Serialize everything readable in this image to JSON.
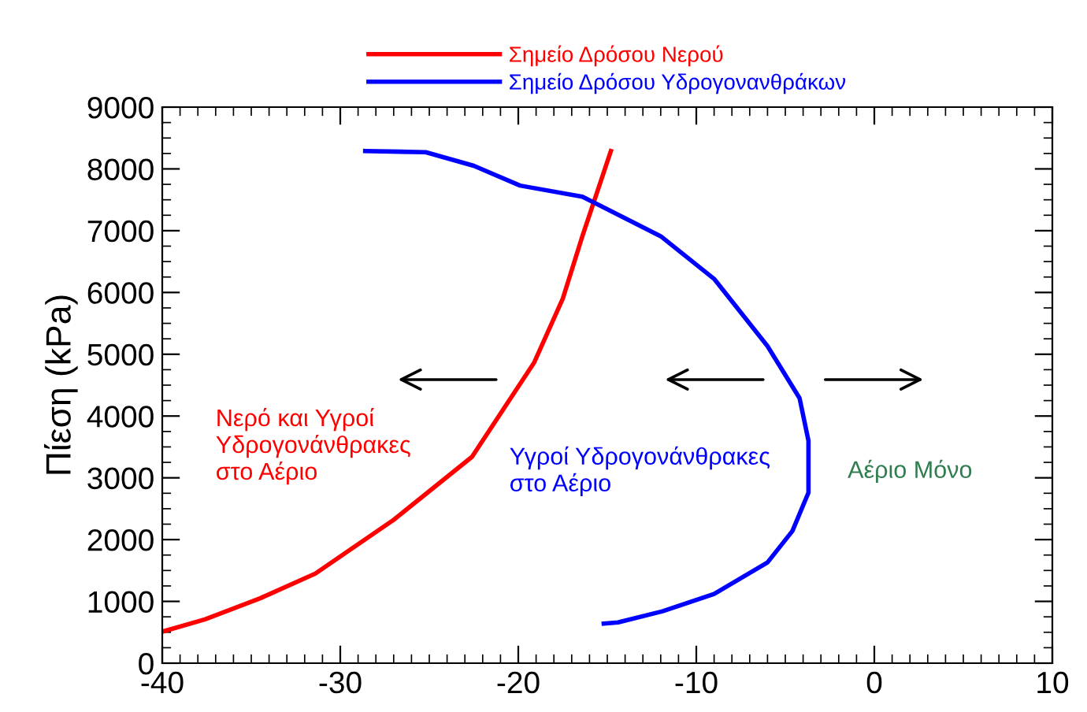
{
  "chart_data": {
    "type": "line",
    "ylabel": "Πίεση (kPa)",
    "xlim": [
      -40,
      10
    ],
    "xticks": [
      -40,
      -30,
      -20,
      -10,
      0,
      10
    ],
    "ylim": [
      0,
      9000
    ],
    "yticks": [
      0,
      1000,
      2000,
      3000,
      4000,
      5000,
      6000,
      7000,
      8000,
      9000
    ],
    "legend": "top",
    "grid": false,
    "marker": "none",
    "line_style": "solid",
    "series": [
      {
        "name": "Σημείο Δρόσου Νερού",
        "color": "#ff0000",
        "x": [
          -40,
          -37.6,
          -34.5,
          -31.4,
          -27,
          -22.6,
          -19.1,
          -17.5,
          -16.4,
          -15.6,
          -14.8
        ],
        "values": [
          510,
          710,
          1050,
          1450,
          2320,
          3340,
          4870,
          5900,
          6910,
          7600,
          8290
        ]
      },
      {
        "name": "Σημείο Δρόσου Υδρογονανθράκων",
        "color": "#0000ff",
        "x": [
          -28.6,
          -25.2,
          -22.5,
          -19.9,
          -16.4,
          -12.0,
          -9.0,
          -6.0,
          -4.2,
          -3.7,
          -3.7,
          -4.6,
          -6.0,
          -9.0,
          -11.9,
          -14.4,
          -15.2
        ],
        "values": [
          8290,
          8270,
          8050,
          7730,
          7550,
          6910,
          6220,
          5130,
          4290,
          3600,
          2760,
          2140,
          1630,
          1120,
          840,
          660,
          640
        ]
      }
    ],
    "annotations": [
      "Νερό και Υγροί\nΥδρογονάνθρακες\nστο Αέριο",
      "Υγροί Υδρογονάνθρακες\nστο Αέριο",
      "Αέριο Μόνο"
    ]
  }
}
